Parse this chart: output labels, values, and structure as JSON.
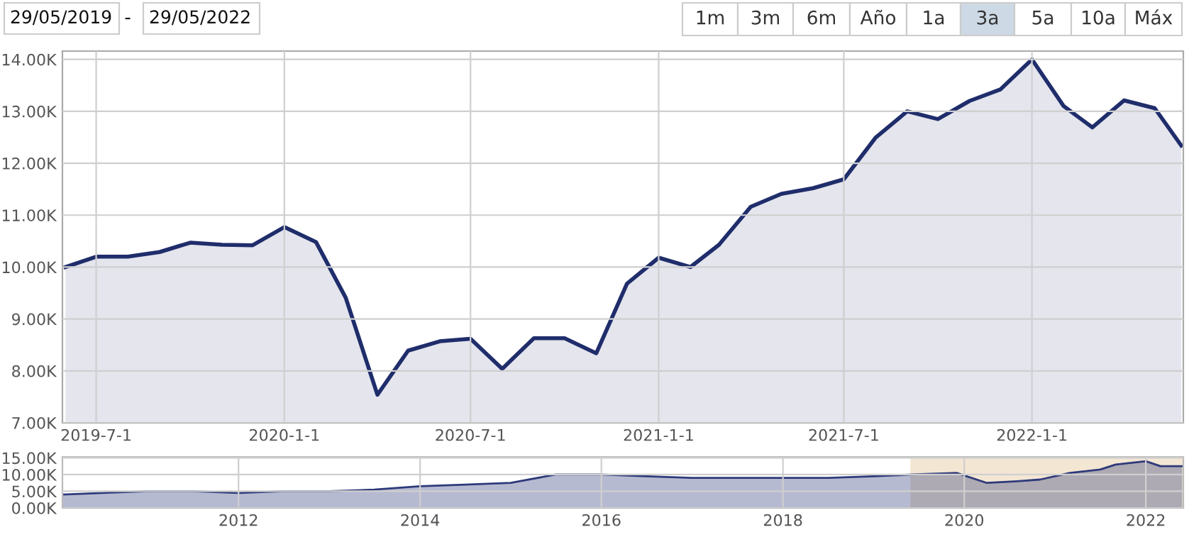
{
  "chart_data": [
    {
      "type": "other",
      "annotations": [
        "29/05/2019",
        "-",
        "29/05/2022"
      ],
      "categories": [
        "1m",
        "3m",
        "6m",
        "Año",
        "1a",
        "3a",
        "5a",
        "10a",
        "Máx"
      ],
      "colors": [
        "#ffffff",
        "#ffffff",
        "#ffffff",
        "#ffffff",
        "#ffffff",
        "#cdd9e5",
        "#ffffff",
        "#ffffff",
        "#ffffff"
      ]
    },
    {
      "type": "area",
      "grid": true,
      "x": [
        "2019-06-01",
        "2019-07-01",
        "2019-08-01",
        "2019-09-01",
        "2019-10-01",
        "2019-11-01",
        "2019-12-01",
        "2020-01-01",
        "2020-02-01",
        "2020-03-01",
        "2020-04-01",
        "2020-05-01",
        "2020-06-01",
        "2020-07-01",
        "2020-08-01",
        "2020-09-01",
        "2020-10-01",
        "2020-11-01",
        "2020-12-01",
        "2021-01-01",
        "2021-02-01",
        "2021-03-01",
        "2021-04-01",
        "2021-05-01",
        "2021-06-01",
        "2021-07-01",
        "2021-08-01",
        "2021-09-01",
        "2021-10-01",
        "2021-11-01",
        "2021-12-01",
        "2022-01-01",
        "2022-02-01",
        "2022-03-01",
        "2022-04-01",
        "2022-05-01",
        "2022-05-27"
      ],
      "series": [
        {
          "color": "#1f2d6b",
          "values": [
            10000,
            10200,
            10200,
            10290,
            10470,
            10430,
            10420,
            10770,
            10480,
            9410,
            7540,
            8390,
            8570,
            8620,
            8040,
            8630,
            8630,
            8340,
            9680,
            10180,
            10000,
            10430,
            11160,
            11410,
            11520,
            11690,
            12490,
            13000,
            12850,
            13200,
            13420,
            14000,
            13100,
            12690,
            13210,
            13060,
            12340
          ]
        }
      ],
      "xlim": [
        "2019-05-29",
        "2022-05-29"
      ],
      "xticks": [
        {
          "value": "2019-07-01",
          "label": "2019-7-1"
        },
        {
          "value": "2020-01-01",
          "label": "2020-1-1"
        },
        {
          "value": "2020-07-01",
          "label": "2020-7-1"
        },
        {
          "value": "2021-01-01",
          "label": "2021-1-1"
        },
        {
          "value": "2021-07-01",
          "label": "2021-7-1"
        },
        {
          "value": "2022-01-01",
          "label": "2022-1-1"
        }
      ],
      "ylim": [
        7000,
        14160
      ],
      "yticks": [
        {
          "value": 7000,
          "label": "7.00K"
        },
        {
          "value": 8000,
          "label": "8.00K"
        },
        {
          "value": 9000,
          "label": "9.00K"
        },
        {
          "value": 10000,
          "label": "10.00K"
        },
        {
          "value": 11000,
          "label": "11.00K"
        },
        {
          "value": 12000,
          "label": "12.00K"
        },
        {
          "value": 13000,
          "label": "13.00K"
        },
        {
          "value": 14000,
          "label": "14.00K"
        }
      ]
    },
    {
      "type": "area",
      "grid": true,
      "x": [
        "2010-01-22",
        "2010-07-01",
        "2011-01-01",
        "2011-07-01",
        "2012-01-01",
        "2012-07-01",
        "2013-01-01",
        "2013-07-01",
        "2014-01-01",
        "2014-07-01",
        "2015-01-01",
        "2015-07-01",
        "2016-01-01",
        "2016-07-01",
        "2017-01-01",
        "2017-07-01",
        "2018-01-01",
        "2018-07-01",
        "2019-01-01",
        "2019-06-01",
        "2019-12-01",
        "2020-04-01",
        "2020-08-01",
        "2020-11-01",
        "2021-03-01",
        "2021-07-01",
        "2021-09-01",
        "2022-01-01",
        "2022-03-01",
        "2022-05-27"
      ],
      "series": [
        {
          "color": "#2e3a7a",
          "values": [
            4000,
            4500,
            5000,
            5000,
            4500,
            5000,
            5000,
            5500,
            6500,
            7000,
            7500,
            10000,
            10000,
            9500,
            9000,
            9000,
            9000,
            9000,
            9500,
            10000,
            10500,
            7500,
            8000,
            8500,
            10500,
            11500,
            13000,
            14000,
            12500,
            12500
          ]
        }
      ],
      "xlim": [
        "2010-01-22",
        "2022-06-01"
      ],
      "xticks": [
        {
          "value": "2012-01-01",
          "label": "2012"
        },
        {
          "value": "2014-01-01",
          "label": "2014"
        },
        {
          "value": "2016-01-01",
          "label": "2016"
        },
        {
          "value": "2018-01-01",
          "label": "2018"
        },
        {
          "value": "2020-01-01",
          "label": "2020"
        },
        {
          "value": "2022-01-01",
          "label": "2022"
        }
      ],
      "ylim": [
        0,
        15300
      ],
      "yticks": [
        {
          "value": 0,
          "label": "0.00K"
        },
        {
          "value": 5000,
          "label": "5.00K"
        },
        {
          "value": 10000,
          "label": "10.00K"
        },
        {
          "value": 15000,
          "label": "15.00K"
        }
      ],
      "bands": [
        {
          "axis": "x",
          "from": "2019-05-29",
          "to": "2022-06-01",
          "color": "#f3e6d3"
        }
      ]
    }
  ]
}
